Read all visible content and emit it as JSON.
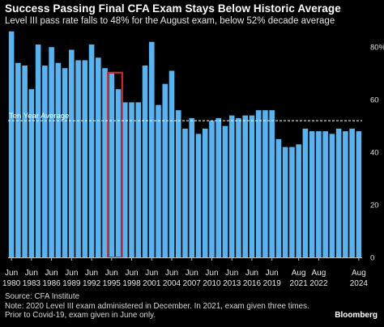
{
  "title": "Success Passing Final CFA Exam Stays Below Historic Average",
  "subtitle": "Level III pass rate falls to 48% for the August exam, below 52% decade average",
  "source_lines": [
    "Source: CFA Institute",
    "Note: 2020 Level III exam administered in December. In 2021, exam given three times.",
    "Prior to Covid-19, exam given in June only."
  ],
  "brand": "Bloomberg",
  "colors": {
    "bar": "#56b4f0",
    "highlight": "#e0282c",
    "background": "#000000",
    "reference_line": "#ffffff"
  },
  "chart_data": {
    "type": "bar",
    "title": "Success Passing Final CFA Exam Stays Below Historic Average",
    "ylim": [
      0,
      85
    ],
    "y_ticks": [
      0,
      20,
      40,
      60,
      80
    ],
    "y_tick_labels": [
      "0",
      "20",
      "40",
      "60",
      "80%"
    ],
    "grid": false,
    "categories": [
      "Jun 1980",
      "Jun 1981",
      "Jun 1982",
      "Jun 1983",
      "Jun 1984",
      "Jun 1985",
      "Jun 1986",
      "Jun 1987",
      "Jun 1988",
      "Jun 1989",
      "Jun 1990",
      "Jun 1991",
      "Jun 1992",
      "Jun 1993",
      "Jun 1994",
      "Jun 1995",
      "Jun 1996",
      "Jun 1997",
      "Jun 1998",
      "Jun 1999",
      "Jun 2000",
      "Jun 2001",
      "Jun 2002",
      "Jun 2003",
      "Jun 2004",
      "Jun 2005",
      "Jun 2006",
      "Jun 2007",
      "Jun 2008",
      "Jun 2009",
      "Jun 2010",
      "Jun 2011",
      "Jun 2012",
      "Jun 2013",
      "Jun 2014",
      "Jun 2015",
      "Jun 2016",
      "Jun 2017",
      "Jun 2018",
      "Jun 2019",
      "Dec 2020",
      "Feb 2021",
      "May 2021",
      "Aug 2021",
      "Feb 2022",
      "May 2022",
      "Aug 2022",
      "Feb 2023",
      "May 2023",
      "Aug 2023",
      "Feb 2024",
      "May 2024",
      "Aug 2024"
    ],
    "values": [
      86,
      74,
      73,
      64,
      81,
      73,
      80,
      74,
      72,
      79,
      75,
      75,
      81,
      76,
      72,
      70,
      64,
      59,
      59,
      59,
      73,
      82,
      58,
      66,
      71,
      56,
      49,
      53,
      47,
      49,
      52,
      53,
      50,
      54,
      53,
      54,
      54,
      56,
      56,
      56,
      45,
      42,
      42,
      43,
      49,
      48,
      48,
      48,
      47,
      49,
      48,
      49,
      48
    ],
    "x_tick_labels": [
      {
        "index": 0,
        "month": "Jun",
        "year": "1980"
      },
      {
        "index": 3,
        "month": "Jun",
        "year": "1983"
      },
      {
        "index": 6,
        "month": "Jun",
        "year": "1986"
      },
      {
        "index": 9,
        "month": "Jun",
        "year": "1989"
      },
      {
        "index": 12,
        "month": "Jun",
        "year": "1992"
      },
      {
        "index": 15,
        "month": "Jun",
        "year": "1995"
      },
      {
        "index": 18,
        "month": "Jun",
        "year": "1998"
      },
      {
        "index": 21,
        "month": "Jun",
        "year": "2001"
      },
      {
        "index": 24,
        "month": "Jun",
        "year": "2004"
      },
      {
        "index": 27,
        "month": "Jun",
        "year": "2007"
      },
      {
        "index": 30,
        "month": "Jun",
        "year": "2010"
      },
      {
        "index": 33,
        "month": "Jun",
        "year": "2013"
      },
      {
        "index": 36,
        "month": "Jun",
        "year": "2016"
      },
      {
        "index": 39,
        "month": "Jun",
        "year": "2019"
      },
      {
        "index": 43,
        "month": "Aug",
        "year": "2021"
      },
      {
        "index": 46,
        "month": "Aug",
        "year": "2022"
      },
      {
        "index": 52,
        "month": "Aug",
        "year": "2024"
      }
    ],
    "highlight": {
      "start_index": 15,
      "end_index": 16
    },
    "reference_line": {
      "label": "Ten Year Average",
      "value": 52
    }
  }
}
